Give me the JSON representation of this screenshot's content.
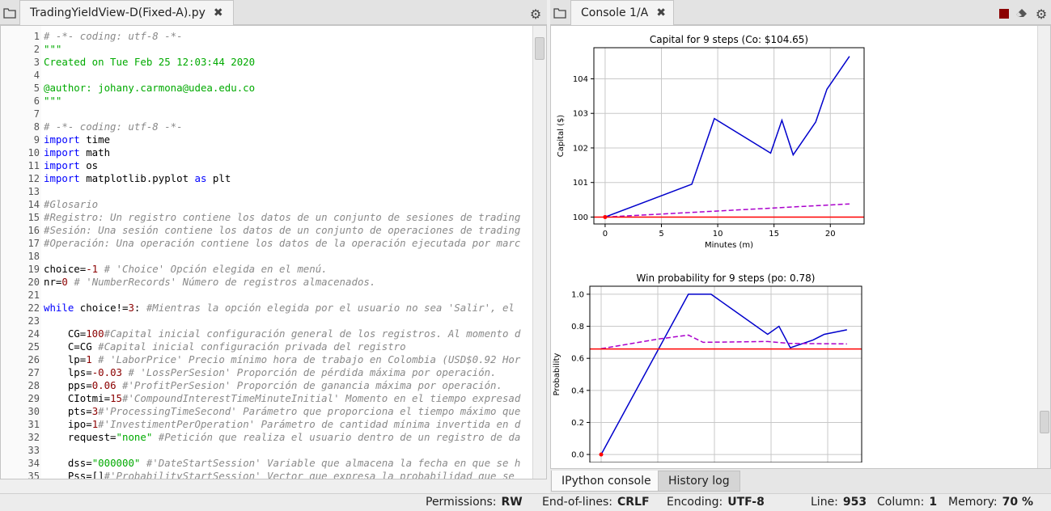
{
  "editor": {
    "tab_label": "TradingYieldView-D(Fixed-A).py",
    "close_glyph": "✖",
    "gear_glyph": "⚙",
    "lines": [
      {
        "n": "1",
        "html": "<span class='cm'># -*- coding: utf-8 -*-</span>"
      },
      {
        "n": "2",
        "html": "<span class='str'>\"\"\"</span>"
      },
      {
        "n": "3",
        "html": "<span class='str'>Created on Tue Feb 25 12:03:44 2020</span>"
      },
      {
        "n": "4",
        "html": ""
      },
      {
        "n": "5",
        "html": "<span class='str'>@author: johany.carmona@udea.edu.co</span>"
      },
      {
        "n": "6",
        "html": "<span class='str'>\"\"\"</span>"
      },
      {
        "n": "7",
        "html": ""
      },
      {
        "n": "8",
        "html": "<span class='cm'># -*- coding: utf-8 -*-</span>"
      },
      {
        "n": "9",
        "html": "<span class='kw'>import</span> time"
      },
      {
        "n": "10",
        "html": "<span class='kw'>import</span> math"
      },
      {
        "n": "11",
        "html": "<span class='kw'>import</span> os"
      },
      {
        "n": "12",
        "html": "<span class='kw'>import</span> matplotlib.pyplot <span class='kw'>as</span> plt"
      },
      {
        "n": "13",
        "html": ""
      },
      {
        "n": "14",
        "html": "<span class='cm'>#Glosario</span>"
      },
      {
        "n": "15",
        "html": "<span class='cm'>#Registro: Un registro contiene los datos de un conjunto de sesiones de trading</span>"
      },
      {
        "n": "16",
        "html": "<span class='cm'>#Sesión: Una sesión contiene los datos de un conjunto de operaciones de trading</span>"
      },
      {
        "n": "17",
        "html": "<span class='cm'>#Operación: Una operación contiene los datos de la operación ejecutada por marc</span>"
      },
      {
        "n": "18",
        "html": ""
      },
      {
        "n": "19",
        "html": "choice=<span class='num'>-1</span> <span class='cm'># 'Choice' Opción elegida en el menú.</span>"
      },
      {
        "n": "20",
        "html": "nr=<span class='num'>0</span> <span class='cm'># 'NumberRecords' Número de registros almacenados.</span>"
      },
      {
        "n": "21",
        "html": ""
      },
      {
        "n": "22",
        "html": "<span class='kw'>while</span> choice!=<span class='num'>3</span>: <span class='cm'>#Mientras la opción elegida por el usuario no sea 'Salir', el</span>"
      },
      {
        "n": "23",
        "html": ""
      },
      {
        "n": "24",
        "html": "    CG=<span class='num'>100</span><span class='cm'>#Capital inicial configuración general de los registros. Al momento d</span>"
      },
      {
        "n": "25",
        "html": "    C=CG <span class='cm'>#Capital inicial configuración privada del registro</span>"
      },
      {
        "n": "26",
        "html": "    lp=<span class='num'>1</span> <span class='cm'># 'LaborPrice' Precio mínimo hora de trabajo en Colombia (USD$0.92 Hor</span>"
      },
      {
        "n": "27",
        "html": "    lps=<span class='num'>-0.03</span> <span class='cm'># 'LossPerSesion' Proporción de pérdida máxima por operación.</span>"
      },
      {
        "n": "28",
        "html": "    pps=<span class='num'>0.06</span> <span class='cm'>#'ProfitPerSesion' Proporción de ganancia máxima por operación.</span>"
      },
      {
        "n": "29",
        "html": "    CIotmi=<span class='num'>15</span><span class='cm'>#'CompoundInterestTimeMinuteInitial' Momento en el tiempo expresad</span>"
      },
      {
        "n": "30",
        "html": "    pts=<span class='num'>3</span><span class='cm'>#'ProcessingTimeSecond' Parámetro que proporciona el tiempo máximo que</span>"
      },
      {
        "n": "31",
        "html": "    ipo=<span class='num'>1</span><span class='cm'>#'InvestimentPerOperation' Parámetro de cantidad mínima invertida en d</span>"
      },
      {
        "n": "32",
        "html": "    request=<span class='str'>\"none\"</span> <span class='cm'>#Petición que realiza el usuario dentro de un registro de da</span>"
      },
      {
        "n": "33",
        "html": ""
      },
      {
        "n": "34",
        "html": "    dss=<span class='str'>\"000000\"</span> <span class='cm'>#'DateStartSession' Variable que almacena la fecha en que se h</span>"
      },
      {
        "n": "35",
        "html": "    Pss=[]<span class='cm'>#'ProbabilityStartSession' Vector que expresa la probabilidad que se </span>"
      }
    ]
  },
  "console": {
    "tab_label": "Console 1/A",
    "close_glyph": "✖",
    "stop_color": "#8b0000",
    "bottom_tabs": [
      "IPython console",
      "History log"
    ],
    "active_bottom_tab": 0
  },
  "status": {
    "permissions_label": "Permissions:",
    "permissions_value": "RW",
    "eol_label": "End-of-lines:",
    "eol_value": "CRLF",
    "encoding_label": "Encoding:",
    "encoding_value": "UTF-8",
    "line_label": "Line:",
    "line_value": "953",
    "column_label": "Column:",
    "column_value": "1",
    "memory_label": "Memory:",
    "memory_value": "70 %"
  },
  "chart_data": [
    {
      "type": "line",
      "title": "Capital for 9 steps (Co: $104.65)",
      "xlabel": "Minutes (m)",
      "ylabel": "Capital ($)",
      "xlim": [
        -1,
        23
      ],
      "ylim": [
        99.8,
        104.9
      ],
      "xticks": [
        0,
        5,
        10,
        15,
        20
      ],
      "yticks": [
        100,
        101,
        102,
        103,
        104
      ],
      "grid": true,
      "series": [
        {
          "style": "solid",
          "color": "#0000cc",
          "x": [
            0,
            7.7,
            8.7,
            9.7,
            14.7,
            15.7,
            16.7,
            18.7,
            19.7,
            21.7
          ],
          "y": [
            100,
            100.95,
            101.9,
            102.85,
            101.85,
            102.8,
            101.8,
            102.75,
            103.7,
            104.65
          ]
        },
        {
          "style": "dashed",
          "color": "#aa00cc",
          "x": [
            0,
            21.7
          ],
          "y": [
            100,
            100.38
          ]
        },
        {
          "style": "solid",
          "color": "#ff0000",
          "x": [
            -1,
            23
          ],
          "y": [
            100,
            100
          ]
        }
      ],
      "points": [
        {
          "x": 0,
          "y": 100,
          "color": "#ff0000"
        }
      ]
    },
    {
      "type": "line",
      "title": "Win probability for 9 steps (po: 0.78)",
      "xlabel": "",
      "ylabel": "Probability",
      "xlim": [
        -1,
        23
      ],
      "ylim": [
        -0.05,
        1.05
      ],
      "xticks": [
        0,
        5,
        10,
        15,
        20
      ],
      "yticks": [
        0.0,
        0.2,
        0.4,
        0.6,
        0.8,
        1.0
      ],
      "grid": true,
      "series": [
        {
          "style": "solid",
          "color": "#0000cc",
          "x": [
            0,
            7.7,
            9.7,
            14.7,
            15.7,
            16.7,
            18.7,
            19.7,
            21.7
          ],
          "y": [
            0,
            1.0,
            1.0,
            0.75,
            0.8,
            0.666,
            0.714,
            0.75,
            0.778
          ]
        },
        {
          "style": "dashed",
          "color": "#aa00cc",
          "x": [
            0,
            5,
            7.7,
            9,
            14.7,
            16.7,
            21.7
          ],
          "y": [
            0.66,
            0.72,
            0.745,
            0.7,
            0.705,
            0.693,
            0.69
          ]
        },
        {
          "style": "solid",
          "color": "#ff0000",
          "x": [
            -1,
            23
          ],
          "y": [
            0.658,
            0.658
          ]
        }
      ],
      "points": [
        {
          "x": 0,
          "y": 0,
          "color": "#ff0000"
        }
      ]
    }
  ]
}
